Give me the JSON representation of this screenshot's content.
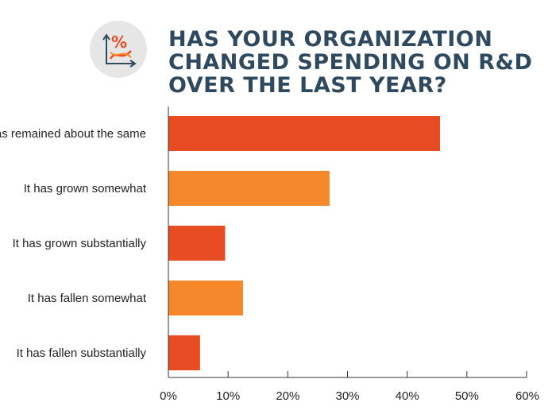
{
  "chart_data": {
    "type": "bar",
    "orientation": "horizontal",
    "title_lines": [
      "HAS YOUR ORGANIZATION",
      "CHANGED SPENDING ON R&D",
      "OVER THE LAST YEAR?"
    ],
    "categories": [
      "It has remained about the same",
      "It has grown somewhat",
      "It has grown substantially",
      "It has fallen somewhat",
      "It has fallen substantially"
    ],
    "values": [
      45.5,
      27,
      9.5,
      12.5,
      5.3
    ],
    "bar_colors": [
      "#e84c22",
      "#f5882a",
      "#e84c22",
      "#f5882a",
      "#e84c22"
    ],
    "xlim": [
      0,
      60
    ],
    "xticks": [
      0,
      10,
      20,
      30,
      40,
      50,
      60
    ],
    "tick_labels": [
      "0%",
      "10%",
      "20%",
      "30%",
      "40%",
      "50%",
      "60%"
    ],
    "xlabel": "",
    "ylabel": "",
    "legend": "none",
    "grid": false
  },
  "icon": {
    "name": "percent-chart-icon",
    "glyph": "%",
    "bg_color": "#e6e6e6",
    "accent_color": "#e84c22",
    "axis_color": "#2f4a5e"
  },
  "colors": {
    "title": "#2f4a5e",
    "axis": "#333333",
    "text": "#222222"
  }
}
